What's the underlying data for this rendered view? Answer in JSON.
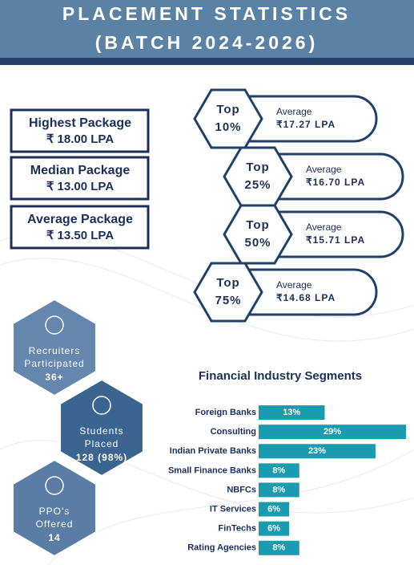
{
  "header": {
    "title_line1": "PLACEMENT STATISTICS",
    "title_line2": "(BATCH 2024-2026)"
  },
  "packages": [
    {
      "label": "Highest Package",
      "value": "₹ 18.00 LPA"
    },
    {
      "label": "Median Package",
      "value": "₹ 13.00 LPA"
    },
    {
      "label": "Average Package",
      "value": "₹ 13.50 LPA"
    }
  ],
  "tiers": [
    {
      "top": "Top",
      "percent": "10%",
      "label": "Average",
      "value": "₹17.27 LPA"
    },
    {
      "top": "Top",
      "percent": "25%",
      "label": "Average",
      "value": "₹16.70 LPA"
    },
    {
      "top": "Top",
      "percent": "50%",
      "label": "Average",
      "value": "₹15.71 LPA"
    },
    {
      "top": "Top",
      "percent": "75%",
      "label": "Average",
      "value": "₹14.68 LPA"
    }
  ],
  "highlights": [
    {
      "line1": "Recruiters",
      "line2": "Participated",
      "value": "36+"
    },
    {
      "line1": "Students",
      "line2": "Placed",
      "value": "128 (98%)"
    },
    {
      "line1": "PPO's",
      "line2": "Offered",
      "value": "14"
    }
  ],
  "chart_data": {
    "type": "hbar",
    "title": "Financial Industry Segments",
    "categories": [
      "Foreign Banks",
      "Consulting",
      "Indian Private Banks",
      "Small Finance Banks",
      "NBFCs",
      "IT Services",
      "FinTechs",
      "Rating Agencies"
    ],
    "values": [
      13,
      29,
      23,
      8,
      8,
      6,
      6,
      8
    ],
    "value_labels": [
      "13%",
      "29%",
      "23%",
      "8%",
      "8%",
      "6%",
      "6%",
      "8%"
    ],
    "color": "#1a9bb0"
  }
}
